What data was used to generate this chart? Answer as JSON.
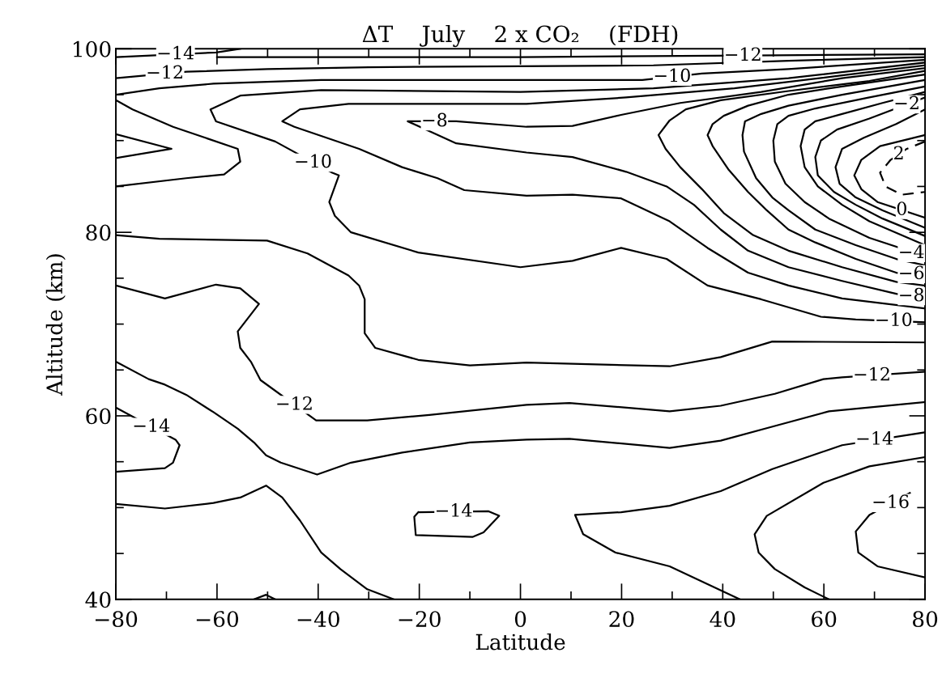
{
  "chart_data": {
    "type": "line",
    "title": "ΔT    July    2 x CO₂    (FDH)",
    "xlabel": "Latitude",
    "ylabel": "Altitude (km)",
    "xlim": [
      -80,
      80
    ],
    "ylim": [
      40,
      100
    ],
    "xticks": [
      -80,
      {
        "value": -70,
        "label": null
      },
      -60,
      {
        "value": -50,
        "label": null
      },
      -40,
      {
        "value": -30,
        "label": null
      },
      -20,
      {
        "value": -10,
        "label": null
      },
      0,
      {
        "value": 10,
        "label": null
      },
      20,
      {
        "value": 30,
        "label": null
      },
      40,
      {
        "value": 50,
        "label": null
      },
      60,
      {
        "value": 70,
        "label": null
      },
      80
    ],
    "yticks": [
      40,
      {
        "value": 45,
        "label": null
      },
      {
        "value": 50,
        "label": null
      },
      {
        "value": 55,
        "label": null
      },
      60,
      {
        "value": 65,
        "label": null
      },
      {
        "value": 70,
        "label": null
      },
      {
        "value": 75,
        "label": null
      },
      80,
      {
        "value": 85,
        "label": null
      },
      {
        "value": 90,
        "label": null
      },
      {
        "value": 95,
        "label": null
      },
      100
    ],
    "grid": false,
    "legend": false,
    "marker": "none",
    "line_style": "solid",
    "series": [
      {
        "color": "#000000",
        "x": [
          -80,
          -60.2,
          -55.4
        ],
        "values": [
          99.1,
          99.6,
          100
        ]
      },
      {
        "color": "#000000",
        "x": [
          -60,
          0,
          50.3,
          80
        ],
        "values": [
          99.1,
          99.1,
          99.3,
          99.4
        ]
      },
      {
        "color": "#000000",
        "x": [
          -80,
          -66,
          -50,
          -30,
          0,
          26.3,
          53,
          80
        ],
        "values": [
          96.8,
          97.5,
          97.8,
          98.0,
          98.1,
          98.2,
          98.7,
          99.1
        ]
      },
      {
        "color": "#000000",
        "x": [
          -80,
          -71.4,
          -60.7,
          -39.4,
          0,
          24.1,
          35.9,
          53,
          80
        ],
        "values": [
          95.0,
          95.7,
          96.2,
          96.6,
          96.6,
          96.6,
          97.3,
          97.8,
          98.8
        ]
      },
      {
        "color": "#000000",
        "x": [
          80,
          53,
          26.3,
          0,
          -39.4,
          -55.4,
          -61.3,
          -60.2,
          -48.5,
          -37.2,
          -35.9,
          -37.8,
          -36.7,
          -33.5,
          -20.2,
          0,
          10.3,
          19.9,
          28.9,
          37,
          47.6,
          59.4,
          66.3,
          80
        ],
        "values": [
          98.5,
          96.8,
          95.7,
          95.3,
          95.5,
          94.9,
          93.4,
          92.1,
          89.9,
          86.5,
          86.2,
          83.3,
          81.8,
          80.0,
          77.8,
          76.2,
          76.9,
          78.3,
          77.1,
          74.2,
          72.7,
          70.8,
          70.5,
          70.2
        ]
      },
      {
        "color": "#000000",
        "x": [
          80,
          63.6,
          42.3,
          20.9,
          1.2,
          -34.0,
          -43.6,
          -47.1,
          -44.7,
          -31.9,
          -23.4,
          -16.4,
          -11.1,
          1.2,
          10.3,
          19.9,
          29.5,
          37.0,
          45.0,
          53,
          63.6,
          80
        ],
        "values": [
          98.2,
          97.1,
          95.7,
          94.7,
          94.0,
          94.0,
          93.4,
          92.1,
          91.5,
          89.1,
          87.1,
          85.9,
          84.6,
          84.0,
          84.1,
          83.7,
          81.2,
          78.3,
          75.6,
          74.2,
          72.8,
          71.7
        ]
      },
      {
        "color": "#000000",
        "x": [
          80,
          63.6,
          47.6,
          31.6,
          19.9,
          10.3,
          1.2,
          -12.7,
          -22.3,
          -12.7,
          1.2,
          10.3,
          20.9,
          28.9,
          34.3,
          39.6,
          45,
          53,
          63.6,
          74.3,
          80
        ],
        "values": [
          97.9,
          96.8,
          95.3,
          94.1,
          92.8,
          91.6,
          91.5,
          92.1,
          92.1,
          89.7,
          88.7,
          88.2,
          86.6,
          85.0,
          83.0,
          80.3,
          78.0,
          76.2,
          74.7,
          73.3,
          72.8
        ]
      },
      {
        "color": "#000000",
        "x": [
          80,
          69,
          53,
          39.6,
          32.7,
          29.5,
          27.3,
          28.7,
          31.6,
          35.9,
          40.2,
          46,
          53,
          63.6,
          74.3,
          80
        ],
        "values": [
          97.6,
          96.5,
          95.4,
          94.4,
          93.4,
          92.2,
          90.6,
          89.1,
          87.1,
          84.7,
          82.1,
          79.7,
          78.0,
          76.2,
          74.6,
          74.2
        ]
      },
      {
        "color": "#000000",
        "x": [
          80,
          63.6,
          53,
          45,
          40.2,
          38,
          37,
          38,
          41.2,
          45,
          48.7,
          53,
          58.3,
          66.3,
          74.3,
          80
        ],
        "values": [
          97.2,
          95.9,
          95.0,
          93.8,
          92.7,
          91.8,
          90.6,
          89.4,
          86.8,
          84.4,
          82.4,
          80.3,
          78.9,
          77.1,
          75.6,
          75.3
        ]
      },
      {
        "color": "#000000",
        "x": [
          80,
          63.6,
          53,
          47.6,
          44.4,
          43.9,
          44.2,
          46.6,
          49.8,
          53,
          58.3,
          66.3,
          74.3,
          80
        ],
        "values": [
          96.6,
          95.0,
          93.8,
          92.9,
          92.1,
          90.6,
          88.8,
          85.9,
          83.8,
          82.4,
          80.3,
          78.6,
          77.1,
          76.4
        ]
      },
      {
        "color": "#000000",
        "x": [
          80,
          69,
          58.3,
          53,
          50.8,
          50,
          50.3,
          52.4,
          56.2,
          61,
          69,
          80
        ],
        "values": [
          95.9,
          94.7,
          93.5,
          92.7,
          91.8,
          90.0,
          87.7,
          85.3,
          83.3,
          81.5,
          79.4,
          77.4
        ]
      },
      {
        "color": "#000000",
        "x": [
          80,
          71.6,
          63.6,
          58.3,
          56.2,
          55.4,
          56.2,
          58.8,
          63.6,
          69,
          80
        ],
        "values": [
          95.3,
          94.1,
          92.9,
          92.1,
          91.2,
          89.4,
          87.1,
          85.0,
          83.0,
          81.2,
          78.6
        ]
      },
      {
        "color": "#000000",
        "x": [
          80,
          69,
          62.6,
          59.4,
          58.3,
          58.8,
          62,
          66.3,
          71.6,
          80
        ],
        "values": [
          94.7,
          92.4,
          91.2,
          90.0,
          88.2,
          86.2,
          84.4,
          83.0,
          81.5,
          79.6
        ]
      },
      {
        "color": "#000000",
        "x": [
          80,
          74.3,
          67.9,
          63.6,
          62.3,
          63.1,
          66.3,
          71.6,
          80
        ],
        "values": [
          93.4,
          91.8,
          90.3,
          89.1,
          87.1,
          85.3,
          83.8,
          82.4,
          80.5
        ]
      },
      {
        "color": "#000000",
        "x": [
          80,
          71.1,
          67.4,
          66,
          67.4,
          70.6,
          80
        ],
        "values": [
          90.6,
          89.4,
          87.9,
          86.2,
          84.7,
          83.3,
          81.6
        ]
      },
      {
        "color": "#000000",
        "line_style": "dashed",
        "x": [
          80,
          76.4,
          73.2,
          71.1,
          72.2,
          75.4,
          80
        ],
        "values": [
          89.9,
          89.1,
          87.9,
          86.5,
          85.0,
          84.1,
          84.4
        ]
      },
      {
        "color": "#000000",
        "x": [
          -80,
          -76.7,
          -68.7,
          -55.9,
          -55.4,
          -58.6,
          -66.1,
          -80
        ],
        "values": [
          94.4,
          93.4,
          91.5,
          89.1,
          87.7,
          86.3,
          85.9,
          85.0
        ]
      },
      {
        "color": "#000000",
        "x": [
          -80,
          -69.0,
          -80
        ],
        "values": [
          90.7,
          89.1,
          88.1
        ]
      },
      {
        "color": "#000000",
        "x": [
          -80,
          -71.4,
          -50.1,
          -42.1,
          -34.0,
          -31.9,
          -30.8,
          -30.8,
          -28.7,
          -20.2,
          -10.0,
          1.2,
          29.5,
          39.6,
          49.8,
          80
        ],
        "values": [
          79.7,
          79.3,
          79.1,
          77.7,
          75.3,
          74.2,
          72.7,
          69.0,
          67.4,
          66.1,
          65.5,
          65.8,
          65.4,
          66.4,
          68.1,
          68.0
        ]
      },
      {
        "color": "#000000",
        "x": [
          -80,
          -70.3,
          -60.2,
          -55.4,
          -51.7,
          -55.9,
          -55.4,
          -53.3,
          -51.4,
          -40.4,
          -30.3,
          -18.0,
          1.2,
          9.7,
          29.5,
          39.6,
          50.3,
          59.9,
          63.6,
          80
        ],
        "values": [
          74.2,
          72.8,
          74.3,
          73.9,
          72.2,
          69.2,
          67.4,
          65.9,
          63.9,
          59.5,
          59.5,
          60.1,
          61.2,
          61.4,
          60.5,
          61.1,
          62.4,
          64.0,
          64.2,
          64.8
        ]
      },
      {
        "color": "#000000",
        "x": [
          -80,
          -73.5,
          -70.3,
          -66.1,
          -60.7,
          -55.9,
          -52.7,
          -50.3,
          -47.4,
          -40.2,
          -33.5,
          -23.4,
          -10.0,
          1.2,
          9.7,
          29.5,
          39.6,
          50.3,
          61.0,
          80
        ],
        "values": [
          65.9,
          64.0,
          63.4,
          62.3,
          60.4,
          58.6,
          57.1,
          55.7,
          54.9,
          53.6,
          54.9,
          56.0,
          57.1,
          57.4,
          57.5,
          56.5,
          57.3,
          58.9,
          60.5,
          61.5
        ]
      },
      {
        "color": "#000000",
        "x": [
          -80,
          -68.2,
          -67.4,
          -68.7,
          -70.3,
          -80
        ],
        "values": [
          60.9,
          57.4,
          56.8,
          54.9,
          54.3,
          53.9
        ]
      },
      {
        "color": "#000000",
        "x": [
          -80,
          -70.3,
          -60.7,
          -55.4,
          -50.3,
          -47.1,
          -43.6,
          -39.4,
          -35.6,
          -30.3,
          -25.0
        ],
        "values": [
          50.4,
          49.9,
          50.5,
          51.1,
          52.4,
          51.1,
          48.6,
          45.1,
          43.3,
          41.1,
          40.0
        ]
      },
      {
        "color": "#000000",
        "x": [
          -52.7,
          -50.3,
          -48.5
        ],
        "values": [
          40.0,
          40.5,
          40.0
        ]
      },
      {
        "color": "#000000",
        "x": [
          -20.2,
          -21.0,
          -20.7,
          -9.5,
          -7.3,
          -4.2,
          -6.3,
          -19.9
        ],
        "values": [
          49.5,
          49.0,
          47.0,
          46.8,
          47.3,
          49.1,
          49.6,
          49.5
        ]
      },
      {
        "color": "#000000",
        "x": [
          80,
          63.6,
          49.8,
          39.6,
          29.5,
          19.9,
          10.8,
          12.4,
          18.8,
          29.5,
          43.4
        ],
        "values": [
          58.2,
          56.8,
          54.2,
          51.8,
          50.2,
          49.5,
          49.2,
          47.1,
          45.1,
          43.6,
          40.0
        ]
      },
      {
        "color": "#000000",
        "x": [
          80,
          69.0,
          59.9,
          48.7,
          46.3,
          47.1,
          50.3,
          56.2,
          61.0
        ],
        "values": [
          55.5,
          54.5,
          52.7,
          49.1,
          47.1,
          45.1,
          43.3,
          41.3,
          40.0
        ]
      },
      {
        "color": "#000000",
        "x": [
          77.0,
          69.0,
          66.3,
          66.8,
          70.6,
          80
        ],
        "values": [
          51.6,
          49.2,
          47.4,
          45.1,
          43.6,
          42.4
        ]
      }
    ],
    "annotations": [
      {
        "text": "−14",
        "x": -68.2,
        "y": 99.4
      },
      {
        "text": "−12",
        "x": -70.3,
        "y": 97.3
      },
      {
        "text": "−10",
        "x": -41,
        "y": 87.6
      },
      {
        "text": "−8",
        "x": -17,
        "y": 92.1
      },
      {
        "text": "−10",
        "x": 30,
        "y": 96.95
      },
      {
        "text": "−12",
        "x": 44,
        "y": 99.25
      },
      {
        "text": "−2",
        "x": 76.4,
        "y": 93.95
      },
      {
        "text": "2",
        "x": 74.8,
        "y": 88.5
      },
      {
        "text": "0",
        "x": 75.4,
        "y": 82.43
      },
      {
        "text": "−4",
        "x": 77.3,
        "y": 77.74
      },
      {
        "text": "−6",
        "x": 77.3,
        "y": 75.44
      },
      {
        "text": "−8",
        "x": 77.3,
        "y": 73.04
      },
      {
        "text": "−10",
        "x": 73.8,
        "y": 70.34
      },
      {
        "text": "−12",
        "x": 69.5,
        "y": 64.4
      },
      {
        "text": "−14",
        "x": 70,
        "y": 57.4
      },
      {
        "text": "−16",
        "x": 73.2,
        "y": 50.5
      },
      {
        "text": "−14",
        "x": -13.2,
        "y": 49.55
      },
      {
        "text": "−12",
        "x": -44.7,
        "y": 61.2
      },
      {
        "text": "−14",
        "x": -73,
        "y": 58.8
      }
    ]
  }
}
